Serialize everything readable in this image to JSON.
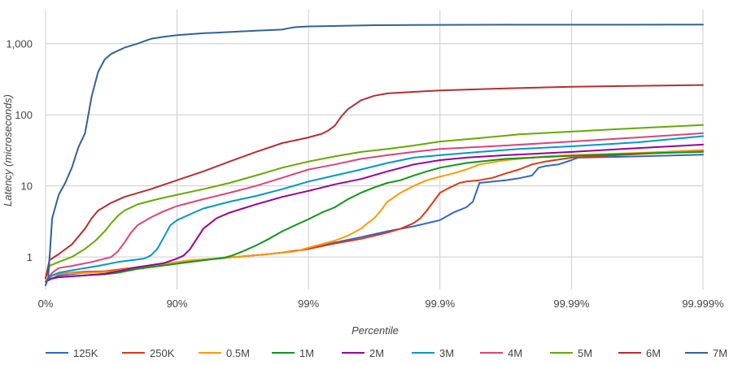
{
  "chart_data": {
    "type": "line",
    "title": "",
    "xlabel": "Percentile",
    "ylabel": "Latency (microseconds)",
    "x_scale": "percentile-nines",
    "y_scale": "log",
    "ylim": [
      0.35,
      3000
    ],
    "grid": true,
    "legend_position": "bottom",
    "x_ticks": [
      {
        "value": 0,
        "label": "0%"
      },
      {
        "value": 1,
        "label": "90%"
      },
      {
        "value": 2,
        "label": "99%"
      },
      {
        "value": 3,
        "label": "99.9%"
      },
      {
        "value": 4,
        "label": "99.99%"
      },
      {
        "value": 5,
        "label": "99.999%"
      }
    ],
    "y_ticks": [
      {
        "value": 1,
        "label": "1"
      },
      {
        "value": 10,
        "label": "10"
      },
      {
        "value": 100,
        "label": "100"
      },
      {
        "value": 1000,
        "label": "1,000"
      }
    ],
    "x_units_note": "x values are in 'nines' units: 0 = 0%, 1 = 90%, 2 = 99%, 3 = 99.9%, 4 = 99.99%, 5 = 99.999%",
    "series": [
      {
        "name": "125K",
        "color": "#3366cc",
        "points": [
          [
            0,
            0.45
          ],
          [
            0.05,
            0.5
          ],
          [
            0.1,
            0.55
          ],
          [
            0.3,
            0.6
          ],
          [
            0.5,
            0.62
          ],
          [
            0.7,
            0.72
          ],
          [
            0.9,
            0.8
          ],
          [
            1.2,
            0.92
          ],
          [
            1.3,
            0.95
          ],
          [
            1.5,
            1.02
          ],
          [
            1.7,
            1.1
          ],
          [
            1.8,
            1.15
          ],
          [
            2,
            1.3
          ],
          [
            2.2,
            1.6
          ],
          [
            2.4,
            1.9
          ],
          [
            2.6,
            2.3
          ],
          [
            2.8,
            2.7
          ],
          [
            3,
            3.3
          ],
          [
            3.1,
            4.2
          ],
          [
            3.2,
            5
          ],
          [
            3.25,
            6
          ],
          [
            3.3,
            11
          ],
          [
            3.5,
            12
          ],
          [
            3.6,
            12.8
          ],
          [
            3.7,
            14
          ],
          [
            3.75,
            18
          ],
          [
            3.8,
            19
          ],
          [
            3.9,
            20
          ],
          [
            4,
            23
          ],
          [
            4.05,
            25
          ],
          [
            4.5,
            26
          ],
          [
            5,
            27.5
          ]
        ]
      },
      {
        "name": "250K",
        "color": "#dc3912",
        "points": [
          [
            0,
            0.45
          ],
          [
            0.05,
            0.55
          ],
          [
            0.1,
            0.58
          ],
          [
            0.3,
            0.62
          ],
          [
            0.45,
            0.63
          ],
          [
            0.7,
            0.72
          ],
          [
            0.9,
            0.8
          ],
          [
            1.1,
            0.88
          ],
          [
            1.3,
            0.95
          ],
          [
            1.5,
            1.02
          ],
          [
            1.7,
            1.1
          ],
          [
            1.8,
            1.15
          ],
          [
            2,
            1.3
          ],
          [
            2.2,
            1.55
          ],
          [
            2.4,
            1.8
          ],
          [
            2.6,
            2.2
          ],
          [
            2.7,
            2.5
          ],
          [
            2.8,
            3
          ],
          [
            2.85,
            3.5
          ],
          [
            2.9,
            4.5
          ],
          [
            2.95,
            6
          ],
          [
            3,
            8
          ],
          [
            3.05,
            9
          ],
          [
            3.1,
            10
          ],
          [
            3.15,
            11
          ],
          [
            3.2,
            11.5
          ],
          [
            3.3,
            12
          ],
          [
            3.4,
            13
          ],
          [
            3.5,
            15
          ],
          [
            3.6,
            17
          ],
          [
            3.7,
            20
          ],
          [
            3.8,
            22
          ],
          [
            4,
            25
          ],
          [
            4.5,
            28
          ],
          [
            5,
            31
          ]
        ]
      },
      {
        "name": "0.5M",
        "color": "#ff9900",
        "points": [
          [
            0,
            0.45
          ],
          [
            0.05,
            0.55
          ],
          [
            0.1,
            0.58
          ],
          [
            0.3,
            0.6
          ],
          [
            0.5,
            0.62
          ],
          [
            0.7,
            0.72
          ],
          [
            0.9,
            0.8
          ],
          [
            1.1,
            0.9
          ],
          [
            1.3,
            0.95
          ],
          [
            1.5,
            1.02
          ],
          [
            1.7,
            1.1
          ],
          [
            1.9,
            1.2
          ],
          [
            2,
            1.35
          ],
          [
            2.2,
            1.7
          ],
          [
            2.3,
            2
          ],
          [
            2.4,
            2.5
          ],
          [
            2.45,
            3
          ],
          [
            2.5,
            3.5
          ],
          [
            2.55,
            4.5
          ],
          [
            2.6,
            6
          ],
          [
            2.7,
            8
          ],
          [
            2.8,
            10
          ],
          [
            2.9,
            12
          ],
          [
            3,
            13.5
          ],
          [
            3.1,
            15
          ],
          [
            3.2,
            17
          ],
          [
            3.3,
            20
          ],
          [
            3.5,
            23
          ],
          [
            3.8,
            26
          ],
          [
            4,
            27
          ],
          [
            4.5,
            29
          ],
          [
            5,
            32
          ]
        ]
      },
      {
        "name": "1M",
        "color": "#109618",
        "points": [
          [
            0,
            0.45
          ],
          [
            0.05,
            0.5
          ],
          [
            0.1,
            0.52
          ],
          [
            0.3,
            0.55
          ],
          [
            0.45,
            0.57
          ],
          [
            0.55,
            0.6
          ],
          [
            0.7,
            0.68
          ],
          [
            0.9,
            0.76
          ],
          [
            1.1,
            0.85
          ],
          [
            1.25,
            0.92
          ],
          [
            1.35,
            0.97
          ],
          [
            1.42,
            1.05
          ],
          [
            1.5,
            1.2
          ],
          [
            1.6,
            1.45
          ],
          [
            1.7,
            1.8
          ],
          [
            1.8,
            2.3
          ],
          [
            1.9,
            2.8
          ],
          [
            2,
            3.4
          ],
          [
            2.1,
            4.2
          ],
          [
            2.2,
            5
          ],
          [
            2.3,
            6.5
          ],
          [
            2.4,
            8
          ],
          [
            2.5,
            9.5
          ],
          [
            2.6,
            11
          ],
          [
            2.7,
            12
          ],
          [
            2.8,
            14
          ],
          [
            2.9,
            16
          ],
          [
            3,
            18
          ],
          [
            3.2,
            21
          ],
          [
            3.5,
            24
          ],
          [
            3.8,
            25.5
          ],
          [
            4,
            26.5
          ],
          [
            4.5,
            28.5
          ],
          [
            5,
            30
          ]
        ]
      },
      {
        "name": "2M",
        "color": "#990099",
        "points": [
          [
            0,
            0.45
          ],
          [
            0.05,
            0.5
          ],
          [
            0.1,
            0.52
          ],
          [
            0.3,
            0.55
          ],
          [
            0.45,
            0.58
          ],
          [
            0.55,
            0.63
          ],
          [
            0.7,
            0.72
          ],
          [
            0.9,
            0.82
          ],
          [
            1,
            0.95
          ],
          [
            1.05,
            1.05
          ],
          [
            1.1,
            1.3
          ],
          [
            1.15,
            1.8
          ],
          [
            1.2,
            2.5
          ],
          [
            1.3,
            3.5
          ],
          [
            1.4,
            4.2
          ],
          [
            1.5,
            4.8
          ],
          [
            1.6,
            5.5
          ],
          [
            1.8,
            7
          ],
          [
            2,
            8.5
          ],
          [
            2.2,
            10.5
          ],
          [
            2.4,
            12.5
          ],
          [
            2.6,
            16
          ],
          [
            2.8,
            20
          ],
          [
            3,
            23
          ],
          [
            3.2,
            25
          ],
          [
            3.5,
            27
          ],
          [
            4,
            30
          ],
          [
            4.5,
            34
          ],
          [
            5,
            38
          ]
        ]
      },
      {
        "name": "3M",
        "color": "#0099c6",
        "points": [
          [
            0,
            0.45
          ],
          [
            0.05,
            0.55
          ],
          [
            0.1,
            0.6
          ],
          [
            0.2,
            0.65
          ],
          [
            0.4,
            0.75
          ],
          [
            0.55,
            0.85
          ],
          [
            0.75,
            0.95
          ],
          [
            0.8,
            1.05
          ],
          [
            0.85,
            1.3
          ],
          [
            0.9,
            1.9
          ],
          [
            0.95,
            2.8
          ],
          [
            1,
            3.3
          ],
          [
            1.1,
            4
          ],
          [
            1.2,
            4.8
          ],
          [
            1.4,
            6
          ],
          [
            1.6,
            7.2
          ],
          [
            1.8,
            9
          ],
          [
            2,
            11.5
          ],
          [
            2.2,
            14
          ],
          [
            2.4,
            17
          ],
          [
            2.6,
            21
          ],
          [
            2.8,
            25
          ],
          [
            3,
            27
          ],
          [
            3.3,
            30
          ],
          [
            3.6,
            33
          ],
          [
            4,
            36
          ],
          [
            4.5,
            41
          ],
          [
            5,
            50
          ]
        ]
      },
      {
        "name": "4M",
        "color": "#dd4477",
        "points": [
          [
            0,
            0.45
          ],
          [
            0.05,
            0.6
          ],
          [
            0.1,
            0.7
          ],
          [
            0.2,
            0.75
          ],
          [
            0.35,
            0.85
          ],
          [
            0.5,
            1
          ],
          [
            0.55,
            1.2
          ],
          [
            0.6,
            1.6
          ],
          [
            0.65,
            2.2
          ],
          [
            0.7,
            2.8
          ],
          [
            0.8,
            3.6
          ],
          [
            0.9,
            4.4
          ],
          [
            1,
            5.2
          ],
          [
            1.2,
            6.5
          ],
          [
            1.4,
            8
          ],
          [
            1.6,
            10
          ],
          [
            1.8,
            13
          ],
          [
            2,
            17
          ],
          [
            2.2,
            20
          ],
          [
            2.4,
            24
          ],
          [
            2.6,
            27
          ],
          [
            2.8,
            30
          ],
          [
            3,
            33
          ],
          [
            3.5,
            37
          ],
          [
            4,
            42
          ],
          [
            4.5,
            48
          ],
          [
            5,
            55
          ]
        ]
      },
      {
        "name": "5M",
        "color": "#66aa00",
        "points": [
          [
            0,
            0.5
          ],
          [
            0.03,
            0.75
          ],
          [
            0.1,
            0.85
          ],
          [
            0.2,
            1
          ],
          [
            0.3,
            1.3
          ],
          [
            0.38,
            1.7
          ],
          [
            0.45,
            2.3
          ],
          [
            0.5,
            3
          ],
          [
            0.55,
            3.8
          ],
          [
            0.6,
            4.5
          ],
          [
            0.7,
            5.5
          ],
          [
            0.85,
            6.5
          ],
          [
            1,
            7.5
          ],
          [
            1.2,
            9
          ],
          [
            1.4,
            11
          ],
          [
            1.6,
            14
          ],
          [
            1.8,
            18
          ],
          [
            2,
            22
          ],
          [
            2.2,
            26
          ],
          [
            2.4,
            30
          ],
          [
            2.6,
            33
          ],
          [
            2.8,
            37
          ],
          [
            3,
            42
          ],
          [
            3.3,
            47
          ],
          [
            3.6,
            53
          ],
          [
            4,
            58
          ],
          [
            4.5,
            65
          ],
          [
            5,
            72
          ]
        ]
      },
      {
        "name": "6M",
        "color": "#b82e2e",
        "points": [
          [
            0,
            0.5
          ],
          [
            0.03,
            0.9
          ],
          [
            0.1,
            1.1
          ],
          [
            0.2,
            1.5
          ],
          [
            0.3,
            2.5
          ],
          [
            0.35,
            3.5
          ],
          [
            0.4,
            4.5
          ],
          [
            0.5,
            5.8
          ],
          [
            0.6,
            7
          ],
          [
            0.8,
            9
          ],
          [
            1,
            12
          ],
          [
            1.2,
            16
          ],
          [
            1.4,
            22
          ],
          [
            1.6,
            30
          ],
          [
            1.8,
            40
          ],
          [
            2,
            48
          ],
          [
            2.1,
            54
          ],
          [
            2.15,
            60
          ],
          [
            2.2,
            70
          ],
          [
            2.25,
            95
          ],
          [
            2.3,
            120
          ],
          [
            2.4,
            160
          ],
          [
            2.5,
            185
          ],
          [
            2.6,
            200
          ],
          [
            2.8,
            210
          ],
          [
            3,
            220
          ],
          [
            3.5,
            235
          ],
          [
            4,
            248
          ],
          [
            4.5,
            255
          ],
          [
            5,
            262
          ]
        ]
      },
      {
        "name": "7M",
        "color": "#316395",
        "points": [
          [
            0,
            0.4
          ],
          [
            0.02,
            0.5
          ],
          [
            0.05,
            3.5
          ],
          [
            0.1,
            7.5
          ],
          [
            0.15,
            11
          ],
          [
            0.2,
            18
          ],
          [
            0.25,
            35
          ],
          [
            0.3,
            55
          ],
          [
            0.35,
            180
          ],
          [
            0.4,
            400
          ],
          [
            0.45,
            600
          ],
          [
            0.5,
            720
          ],
          [
            0.6,
            880
          ],
          [
            0.7,
            1000
          ],
          [
            0.8,
            1170
          ],
          [
            0.9,
            1250
          ],
          [
            1,
            1320
          ],
          [
            1.2,
            1400
          ],
          [
            1.4,
            1460
          ],
          [
            1.6,
            1520
          ],
          [
            1.8,
            1580
          ],
          [
            1.85,
            1650
          ],
          [
            1.9,
            1710
          ],
          [
            2,
            1750
          ],
          [
            2.5,
            1820
          ],
          [
            3,
            1840
          ],
          [
            3.5,
            1850
          ],
          [
            4,
            1850
          ],
          [
            5,
            1860
          ]
        ]
      }
    ]
  }
}
